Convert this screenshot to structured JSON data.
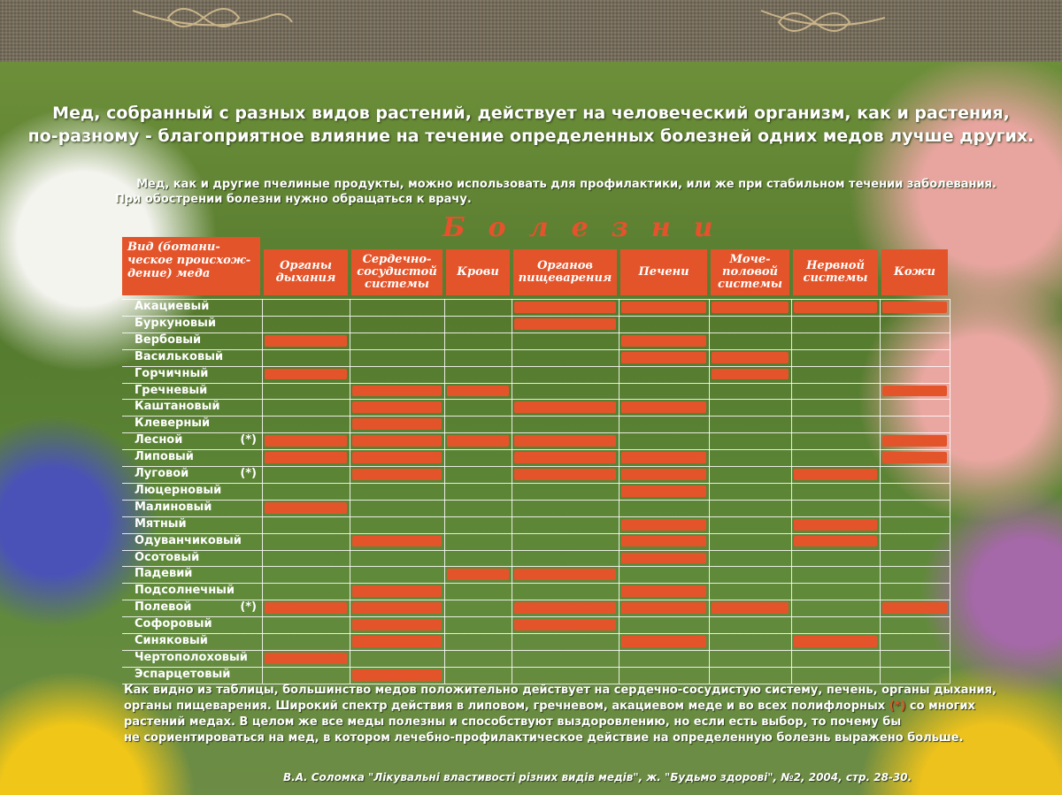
{
  "headline": {
    "line1": "Мед, собранный с разных видов растений, действует на человеческий организм, как и растения,",
    "line2": "по-разному - благоприятное влияние на течение определенных болезней одних медов лучше других."
  },
  "subtitle": {
    "line1": "Мед, как и другие пчелиные продукты, можно использовать для профилактики, или же при стабильном течении заболевания.",
    "line2": "При обострении болезни нужно обращаться к врачу."
  },
  "diseases_title": "Болезни",
  "corner_header": "Вид (ботани-ческое происхож-дение) меда",
  "columns": [
    "Органы дыхания",
    "Сердечно-сосудистой системы",
    "Крови",
    "Органов пищеварения",
    "Печени",
    "Моче-половой системы",
    "Нервной системы",
    "Кожи"
  ],
  "rows": [
    {
      "name": "Акациевый",
      "mark": "",
      "cells": [
        0,
        0,
        0,
        1,
        1,
        1,
        1,
        1
      ]
    },
    {
      "name": "Буркуновый",
      "mark": "",
      "cells": [
        0,
        0,
        0,
        1,
        0,
        0,
        0,
        0
      ]
    },
    {
      "name": "Вербовый",
      "mark": "",
      "cells": [
        1,
        0,
        0,
        0,
        1,
        0,
        0,
        0
      ]
    },
    {
      "name": "Васильковый",
      "mark": "",
      "cells": [
        0,
        0,
        0,
        0,
        1,
        1,
        0,
        0
      ]
    },
    {
      "name": "Горчичный",
      "mark": "",
      "cells": [
        1,
        0,
        0,
        0,
        0,
        1,
        0,
        0
      ]
    },
    {
      "name": "Гречневый",
      "mark": "",
      "cells": [
        0,
        1,
        1,
        0,
        0,
        0,
        0,
        1
      ]
    },
    {
      "name": "Каштановый",
      "mark": "",
      "cells": [
        0,
        1,
        0,
        1,
        1,
        0,
        0,
        0
      ]
    },
    {
      "name": "Клеверный",
      "mark": "",
      "cells": [
        0,
        1,
        0,
        0,
        0,
        0,
        0,
        0
      ]
    },
    {
      "name": "Лесной",
      "mark": "(*)",
      "cells": [
        1,
        1,
        1,
        1,
        0,
        0,
        0,
        1
      ]
    },
    {
      "name": "Липовый",
      "mark": "",
      "cells": [
        1,
        1,
        0,
        1,
        1,
        0,
        0,
        1
      ]
    },
    {
      "name": "Луговой",
      "mark": "(*)",
      "cells": [
        0,
        1,
        0,
        1,
        1,
        0,
        1,
        0
      ]
    },
    {
      "name": "Люцерновый",
      "mark": "",
      "cells": [
        0,
        0,
        0,
        0,
        1,
        0,
        0,
        0
      ]
    },
    {
      "name": "Малиновый",
      "mark": "",
      "cells": [
        1,
        0,
        0,
        0,
        0,
        0,
        0,
        0
      ]
    },
    {
      "name": "Мятный",
      "mark": "",
      "cells": [
        0,
        0,
        0,
        0,
        1,
        0,
        1,
        0
      ]
    },
    {
      "name": "Одуванчиковый",
      "mark": "",
      "cells": [
        0,
        1,
        0,
        0,
        1,
        0,
        1,
        0
      ]
    },
    {
      "name": "Осотовый",
      "mark": "",
      "cells": [
        0,
        0,
        0,
        0,
        1,
        0,
        0,
        0
      ]
    },
    {
      "name": "Падевий",
      "mark": "",
      "cells": [
        0,
        0,
        1,
        1,
        0,
        0,
        0,
        0
      ]
    },
    {
      "name": "Подсолнечный",
      "mark": "",
      "cells": [
        0,
        1,
        0,
        0,
        1,
        0,
        0,
        0
      ]
    },
    {
      "name": "Полевой",
      "mark": "(*)",
      "cells": [
        1,
        1,
        0,
        1,
        1,
        1,
        0,
        1
      ]
    },
    {
      "name": "Софоровый",
      "mark": "",
      "cells": [
        0,
        1,
        0,
        1,
        0,
        0,
        0,
        0
      ]
    },
    {
      "name": "Синяковый",
      "mark": "",
      "cells": [
        0,
        1,
        0,
        0,
        1,
        0,
        1,
        0
      ]
    },
    {
      "name": "Чертополоховый",
      "mark": "",
      "cells": [
        1,
        0,
        0,
        0,
        0,
        0,
        0,
        0
      ]
    },
    {
      "name": "Эспарцетовый",
      "mark": "",
      "cells": [
        0,
        1,
        0,
        0,
        0,
        0,
        0,
        0
      ]
    }
  ],
  "footer": {
    "line1": "Как видно из таблицы, большинство медов положительно действует на сердечно-сосудистую систему, печень, органы дыхания,",
    "line2a": "органы пищеварения. Широкий спектр действия в липовом, гречневом, акациевом меде и во всех полифлорных",
    "line2star": "(*)",
    "line2b": "со многих",
    "line3": "растений медах. В целом же все меды полезны и способствуют  выздоровлению, но если есть выбор, то почему бы",
    "line4": "не сориентироваться на мед, в котором лечебно-профилактическое действие на определенную болезнь  выражено больше."
  },
  "source": "В.А. Соломка \"Лікувальні властивості різних видів медів\", ж. \"Будьмо здорові\", №2, 2004, стр. 28-30.",
  "colors": {
    "accent": "#e4542a",
    "grid": "#ffffff",
    "background": "#5f8a39"
  }
}
